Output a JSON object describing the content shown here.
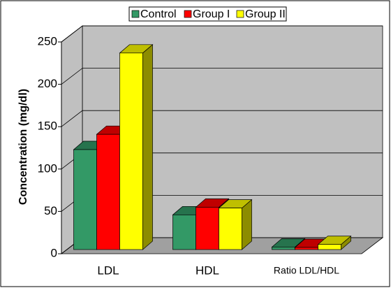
{
  "chart_data": {
    "type": "bar3d",
    "y_label": "Concentration (mg/dl)",
    "categories": [
      "LDL",
      "HDL",
      "Ratio LDL/HDL"
    ],
    "series": [
      {
        "name": "Control",
        "color": "#339966",
        "values": [
          118,
          41,
          3
        ]
      },
      {
        "name": "Group I",
        "color": "#ff0000",
        "values": [
          136,
          50,
          2.5
        ]
      },
      {
        "name": "Group II",
        "color": "#ffff00",
        "values": [
          232,
          49,
          6
        ]
      }
    ],
    "ylim": [
      0,
      250
    ],
    "yticks": [
      0,
      50,
      100,
      150,
      200,
      250
    ],
    "grid": true,
    "legend": "top"
  }
}
